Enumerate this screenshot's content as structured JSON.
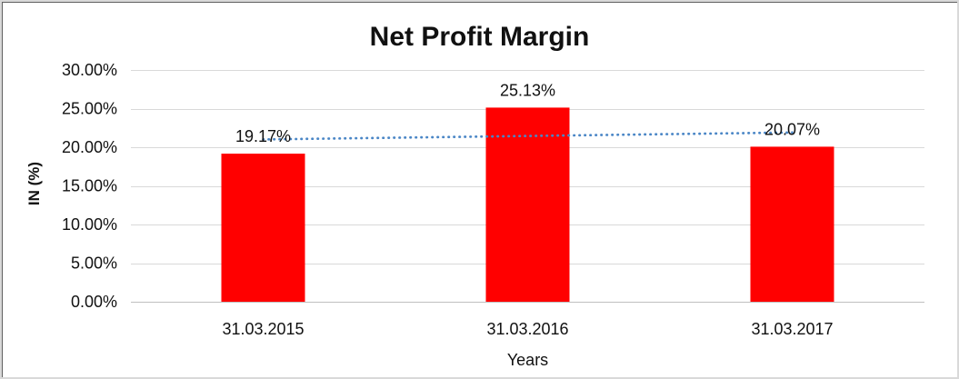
{
  "chart_data": {
    "type": "bar",
    "title": "Net Profit Margin",
    "xlabel": "Years",
    "ylabel": "IN (%)",
    "categories": [
      "31.03.2015",
      "31.03.2016",
      "31.03.2017"
    ],
    "values": [
      19.17,
      25.13,
      20.07
    ],
    "data_labels": [
      "19.17%",
      "25.13%",
      "20.07%"
    ],
    "y_ticks": [
      0,
      5,
      10,
      15,
      20,
      25,
      30
    ],
    "y_tick_labels": [
      "0.00%",
      "5.00%",
      "10.00%",
      "15.00%",
      "20.00%",
      "25.00%",
      "30.00%"
    ],
    "ylim": [
      0,
      30
    ],
    "grid": true,
    "legend": "none",
    "bar_color": "#ff0000",
    "grid_color": "#d9d9d9",
    "axis_line_color": "#bfbfbf",
    "trendline": {
      "type": "linear",
      "style": "dotted",
      "color": "#4a86c6",
      "start_value": 21.01,
      "end_value": 21.91
    }
  }
}
